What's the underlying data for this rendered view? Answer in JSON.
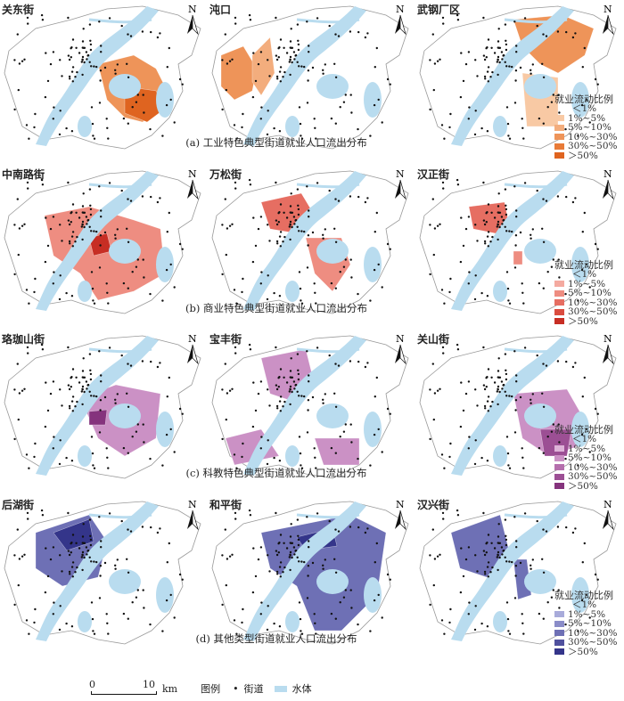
{
  "rows": [
    {
      "caption": "(a)  工业特色典型街道就业人口流出分布",
      "colors": [
        "#f8c9a4",
        "#f3ad7d",
        "#ee9459",
        "#e87b38",
        "#df6420"
      ],
      "panels": [
        "关东街",
        "沌口",
        "武钢厂区"
      ]
    },
    {
      "caption": "(b)  商业特色典型街道就业人口流出分布",
      "colors": [
        "#f4aaa0",
        "#ee8d81",
        "#e66e62",
        "#da4c3f",
        "#c72e24"
      ],
      "panels": [
        "中南路街",
        "万松街",
        "汉正街"
      ]
    },
    {
      "caption": "(c)  科教特色典型街道就业人口流出分布",
      "colors": [
        "#deb3d8",
        "#cb91c5",
        "#b56fad",
        "#9c4f94",
        "#85337d"
      ],
      "panels": [
        "珞珈山街",
        "宝丰街",
        "关山街"
      ]
    },
    {
      "caption": "(d)  其他类型街道就业人口流出分布",
      "colors": [
        "#a8abda",
        "#8a8cc8",
        "#6e70b5",
        "#50519e",
        "#34358a"
      ],
      "panels": [
        "后湖街",
        "和平街",
        "汉兴街"
      ]
    }
  ],
  "legend": {
    "title": "就业流动比例",
    "classes": [
      "＜1%",
      "1%~5%",
      "5%~10%",
      "10%~30%",
      "30%~50%",
      "＞50%"
    ]
  },
  "north_label": "N",
  "scale": {
    "zero": "0",
    "ten": "10",
    "unit": "km"
  },
  "key": {
    "label": "图例",
    "street": "街道",
    "water": "水体"
  },
  "water_color": "#b9dcef"
}
